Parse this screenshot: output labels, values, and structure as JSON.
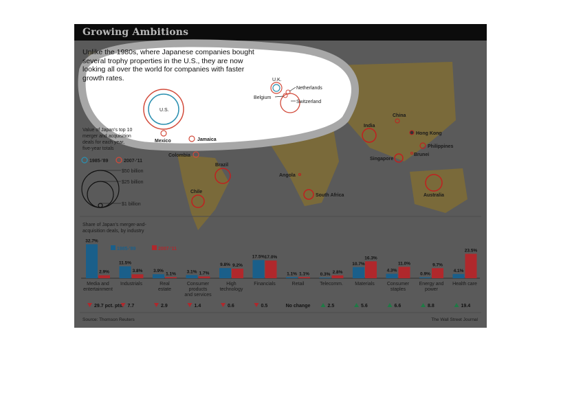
{
  "header": {
    "title": "Growing Ambitions"
  },
  "intro": "Unlike the 1980s, where Japanese companies bought several trophy properties in the U.S., they are now looking all over the world for companies with faster growth rates.",
  "map_legend": {
    "title": "Value of Japan's top 10 merger and acquisition deals for each year, five-year totals",
    "period_a": "1985-'89",
    "period_b": "2007-'11",
    "size_labels": [
      "$50 billion",
      "$25 billion",
      "$1 billion"
    ]
  },
  "map_labels": {
    "us": "U.S.",
    "mexico": "Mexico",
    "jamaica": "Jamaica",
    "colombia": "Colombia",
    "brazil": "Brazil",
    "chile": "Chile",
    "uk": "U.K.",
    "netherlands": "Netherlands",
    "belgium": "Belgium",
    "switzerland": "Switzerland",
    "angola": "Angola",
    "south_africa": "South Africa",
    "india": "India",
    "china": "China",
    "hong_kong": "Hong Kong",
    "philippines": "Philippines",
    "singapore": "Singapore",
    "brunei": "Brunei",
    "australia": "Australia"
  },
  "colors": {
    "period_a": "#1a5f8a",
    "period_b": "#b0282c",
    "teal_ring": "#2a8fb0",
    "red_ring": "#d24a3a"
  },
  "chart_data": {
    "type": "bar",
    "title": "Share of Japan's merger-and-acquisition deals, by industry",
    "categories": [
      "Media and entertainment",
      "Industrials",
      "Real estate",
      "Consumer products and services",
      "High technology",
      "Financials",
      "Retail",
      "Telecomm.",
      "Materials",
      "Consumer staples",
      "Energy and power",
      "Health care"
    ],
    "series": [
      {
        "name": "1985-'89",
        "values": [
          32.7,
          11.5,
          3.9,
          3.1,
          9.8,
          17.5,
          1.1,
          0.3,
          10.7,
          4.3,
          0.9,
          4.1
        ]
      },
      {
        "name": "2007-'11",
        "values": [
          2.9,
          3.8,
          1.1,
          1.7,
          9.2,
          17.0,
          1.1,
          2.8,
          16.3,
          11.0,
          9.7,
          23.5
        ]
      }
    ],
    "value_labels_a": [
      "32.7%",
      "11.5%",
      "3.9%",
      "3.1%",
      "9.8%",
      "17.5%",
      "1.1%",
      "0.3%",
      "10.7%",
      "4.3%",
      "0.9%",
      "4.1%"
    ],
    "value_labels_b": [
      "2.9%",
      "3.8%",
      "1.1%",
      "1.7%",
      "9.2%",
      "17.0%",
      "1.1%",
      "2.8%",
      "16.3%",
      "11.0%",
      "9.7%",
      "23.5%"
    ],
    "category_labels": [
      [
        "Media and",
        "entertainment"
      ],
      [
        "Industrials"
      ],
      [
        "Real",
        "estate"
      ],
      [
        "Consumer",
        "products",
        "and services"
      ],
      [
        "High",
        "technology"
      ],
      [
        "Financials"
      ],
      [
        "Retail"
      ],
      [
        "Telecomm."
      ],
      [
        "Materials"
      ],
      [
        "Consumer",
        "staples"
      ],
      [
        "Energy and",
        "power"
      ],
      [
        "Health care"
      ]
    ],
    "changes": [
      {
        "dir": "down",
        "text": "29.7 pct. pts."
      },
      {
        "dir": "down",
        "text": "7.7"
      },
      {
        "dir": "down",
        "text": "2.9"
      },
      {
        "dir": "down",
        "text": "1.4"
      },
      {
        "dir": "down",
        "text": "0.6"
      },
      {
        "dir": "down",
        "text": "0.5"
      },
      {
        "dir": "none",
        "text": "No change"
      },
      {
        "dir": "up",
        "text": "2.5"
      },
      {
        "dir": "up",
        "text": "5.6"
      },
      {
        "dir": "up",
        "text": "6.6"
      },
      {
        "dir": "up",
        "text": "8.8"
      },
      {
        "dir": "up",
        "text": "19.4"
      }
    ],
    "ylim": [
      0,
      33
    ]
  },
  "footer": {
    "source": "Source: Thomson Reuters",
    "credit": "The Wall Street Journal"
  }
}
